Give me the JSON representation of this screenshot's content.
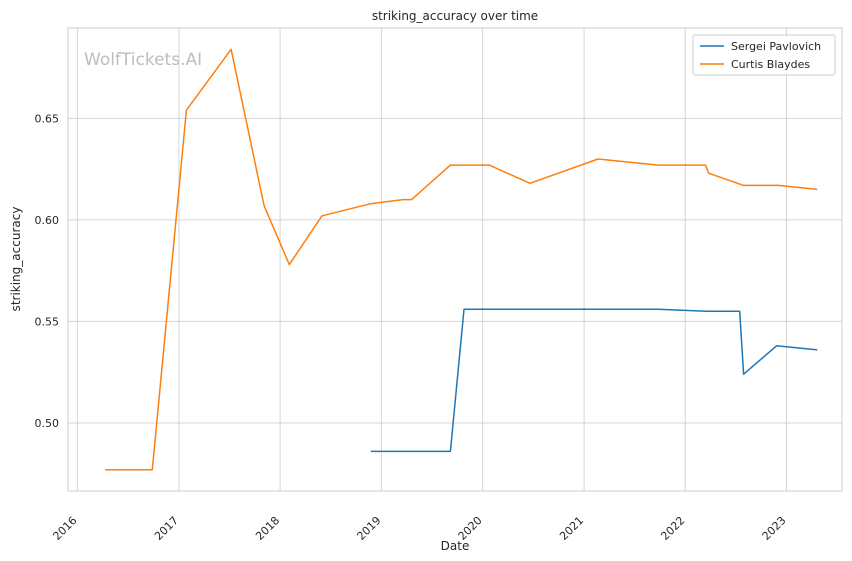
{
  "chart_data": {
    "type": "line",
    "title": "striking_accuracy over time",
    "xlabel": "Date",
    "ylabel": "striking_accuracy",
    "watermark": "WolfTickets.AI",
    "xlim": [
      "2015-11-28",
      "2023-07-20"
    ],
    "ylim": [
      0.4665,
      0.6945
    ],
    "x_ticks": [
      "2016-01-01",
      "2017-01-01",
      "2018-01-01",
      "2019-01-01",
      "2020-01-01",
      "2021-01-01",
      "2022-01-01",
      "2023-01-01"
    ],
    "x_tick_labels": [
      "2016",
      "2017",
      "2018",
      "2019",
      "2020",
      "2021",
      "2022",
      "2023"
    ],
    "y_ticks": [
      0.5,
      0.55,
      0.6,
      0.65
    ],
    "y_tick_labels": [
      "0.50",
      "0.55",
      "0.60",
      "0.65"
    ],
    "grid": true,
    "legend_position": "top-right",
    "series": [
      {
        "name": "Sergei Pavlovich",
        "color": "#1f77b4",
        "points": [
          [
            "2018-11-24",
            0.486
          ],
          [
            "2019-09-07",
            0.486
          ],
          [
            "2019-10-26",
            0.556
          ],
          [
            "2021-09-25",
            0.556
          ],
          [
            "2022-03-19",
            0.555
          ],
          [
            "2022-07-16",
            0.555
          ],
          [
            "2022-07-30",
            0.524
          ],
          [
            "2022-11-26",
            0.538
          ],
          [
            "2023-04-22",
            0.536
          ]
        ]
      },
      {
        "name": "Curtis Blaydes",
        "color": "#ff7f0e",
        "points": [
          [
            "2016-04-10",
            0.477
          ],
          [
            "2016-09-27",
            0.477
          ],
          [
            "2017-01-28",
            0.654
          ],
          [
            "2017-07-08",
            0.684
          ],
          [
            "2017-11-04",
            0.607
          ],
          [
            "2018-02-03",
            0.578
          ],
          [
            "2018-06-01",
            0.602
          ],
          [
            "2018-11-24",
            0.608
          ],
          [
            "2019-03-20",
            0.61
          ],
          [
            "2019-04-20",
            0.61
          ],
          [
            "2019-09-07",
            0.627
          ],
          [
            "2020-01-25",
            0.627
          ],
          [
            "2020-06-20",
            0.618
          ],
          [
            "2021-02-20",
            0.63
          ],
          [
            "2021-09-25",
            0.627
          ],
          [
            "2022-03-15",
            0.627
          ],
          [
            "2022-03-26",
            0.623
          ],
          [
            "2022-07-30",
            0.617
          ],
          [
            "2022-12-03",
            0.617
          ],
          [
            "2023-04-22",
            0.615
          ]
        ]
      }
    ]
  }
}
